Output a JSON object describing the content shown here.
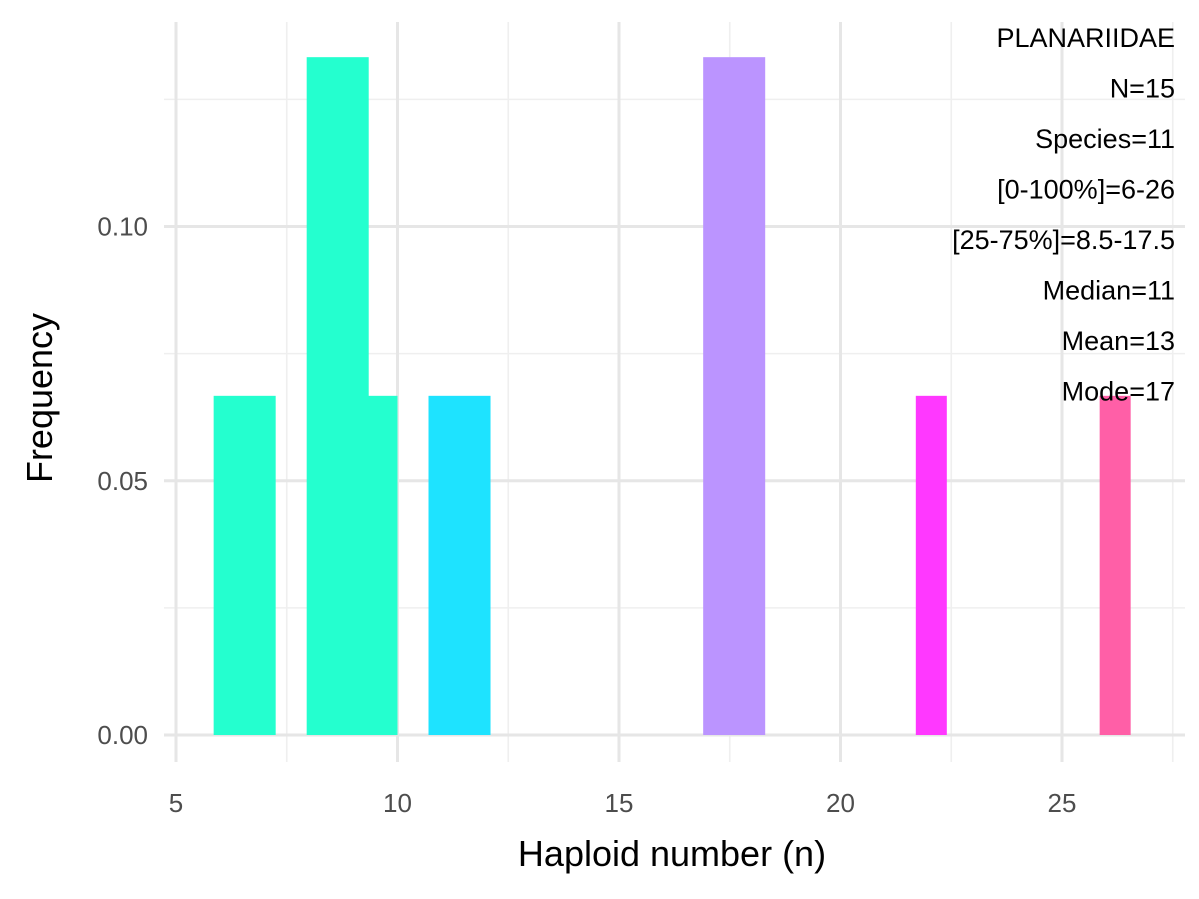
{
  "chart_data": {
    "type": "bar",
    "title": "",
    "xlabel": "Haploid number (n)",
    "ylabel": "Frequency",
    "xlim": [
      5,
      27.5
    ],
    "ylim": [
      0,
      0.1333
    ],
    "x_ticks": [
      5,
      10,
      15,
      20,
      25
    ],
    "y_ticks": [
      0.0,
      0.05,
      0.1
    ],
    "y_tick_labels": [
      "0.00",
      "0.05",
      "0.10"
    ],
    "grid": true,
    "legend": "none",
    "bars": [
      {
        "x0": 5.85,
        "x1": 7.25,
        "value": 0.0667,
        "color": "#24ffcf"
      },
      {
        "x0": 7.95,
        "x1": 9.35,
        "value": 0.1333,
        "color": "#24ffcf"
      },
      {
        "x0": 9.25,
        "x1": 10.0,
        "value": 0.0667,
        "color": "#24ffcf"
      },
      {
        "x0": 10.7,
        "x1": 12.1,
        "value": 0.0667,
        "color": "#1ee3ff"
      },
      {
        "x0": 16.9,
        "x1": 18.3,
        "value": 0.1333,
        "color": "#bb94ff"
      },
      {
        "x0": 21.7,
        "x1": 22.4,
        "value": 0.0667,
        "color": "#ff38ff"
      },
      {
        "x0": 25.85,
        "x1": 26.55,
        "value": 0.0667,
        "color": "#ff5fa7"
      }
    ],
    "annotations": [
      "PLANARIIDAE",
      "N=15",
      "Species=11",
      "[0-100%]=6-26",
      "[25-75%]=8.5-17.5",
      "Median=11",
      "Mean=13",
      "Mode=17"
    ]
  }
}
